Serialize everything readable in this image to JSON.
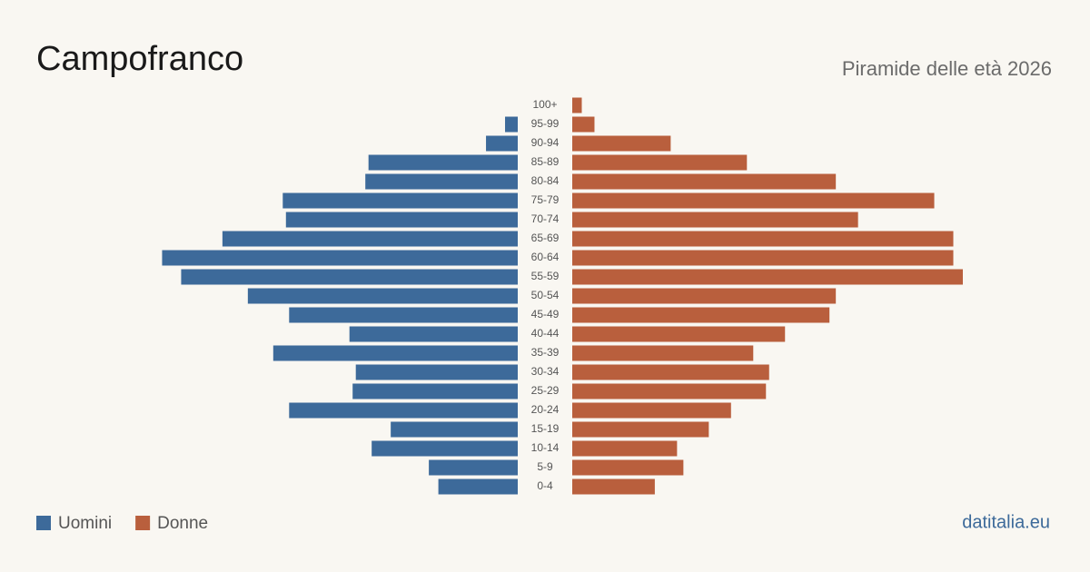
{
  "chart_data": {
    "type": "pyramid",
    "title": "Campofranco",
    "subtitle": "Piramide delle età 2026",
    "categories": [
      "100+",
      "95-99",
      "90-94",
      "85-89",
      "80-84",
      "75-79",
      "70-74",
      "65-69",
      "60-64",
      "55-59",
      "50-54",
      "45-49",
      "40-44",
      "35-39",
      "30-34",
      "25-29",
      "20-24",
      "15-19",
      "10-14",
      "5-9",
      "0-4"
    ],
    "series": [
      {
        "name": "Uomini",
        "color": "#3d6a9a",
        "values": [
          0,
          4,
          10,
          47,
          48,
          74,
          73,
          93,
          112,
          106,
          85,
          72,
          53,
          77,
          51,
          52,
          72,
          40,
          46,
          28,
          25
        ]
      },
      {
        "name": "Donne",
        "color": "#b95f3d",
        "values": [
          3,
          7,
          31,
          55,
          83,
          114,
          90,
          120,
          120,
          123,
          83,
          81,
          67,
          57,
          62,
          61,
          50,
          43,
          33,
          35,
          26
        ]
      }
    ],
    "source": "datitalia.eu"
  }
}
